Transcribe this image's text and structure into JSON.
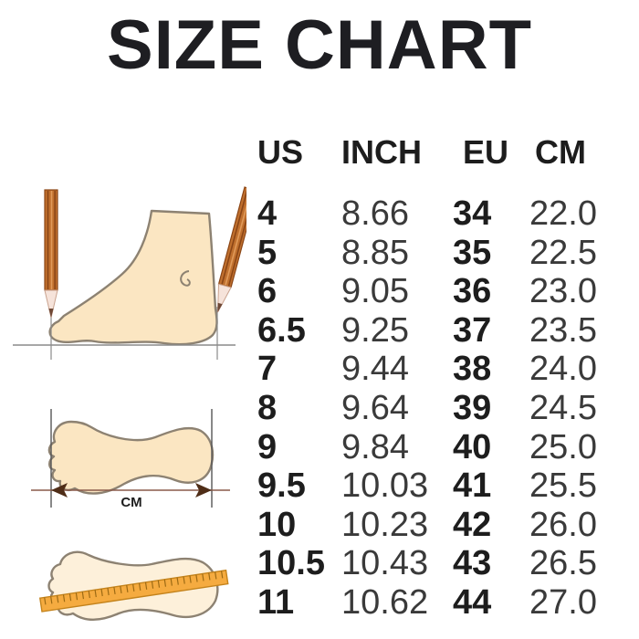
{
  "title": "SIZE CHART",
  "table": {
    "headers": [
      "US",
      "INCH",
      "EU",
      "CM"
    ],
    "rows": [
      [
        "4",
        "8.66",
        "34",
        "22.0"
      ],
      [
        "5",
        "8.85",
        "35",
        "22.5"
      ],
      [
        "6",
        "9.05",
        "36",
        "23.0"
      ],
      [
        "6.5",
        "9.25",
        "37",
        "23.5"
      ],
      [
        "7",
        "9.44",
        "38",
        "24.0"
      ],
      [
        "8",
        "9.64",
        "39",
        "24.5"
      ],
      [
        "9",
        "9.84",
        "40",
        "25.0"
      ],
      [
        "9.5",
        "10.03",
        "41",
        "25.5"
      ],
      [
        "10",
        "10.23",
        "42",
        "26.0"
      ],
      [
        "10.5",
        "10.43",
        "43",
        "26.5"
      ],
      [
        "11",
        "10.62",
        "44",
        "27.0"
      ]
    ]
  },
  "illustrations": {
    "cm_label": "CM",
    "icons": [
      "pencil-icon",
      "foot-side-icon",
      "footprint-icon",
      "ruler-icon",
      "measure-arrow-icon"
    ]
  },
  "colors": {
    "background": "#ffffff",
    "text_primary": "#1d1d1d",
    "text_secondary": "#3a3a3a",
    "foot_fill": "#fbe6c2",
    "foot_outline": "#8d8272",
    "pencil_body": "#c0702e",
    "pencil_stripe": "#8a4516",
    "arrowhead_brown": "#4f2d17",
    "ruler_orange": "#f5ab40",
    "ruler_edge": "#c4831c"
  },
  "chart_data": {
    "type": "table",
    "title": "SIZE CHART",
    "columns": [
      "US",
      "INCH",
      "EU",
      "CM"
    ],
    "rows": [
      [
        4,
        8.66,
        34,
        22.0
      ],
      [
        5,
        8.85,
        35,
        22.5
      ],
      [
        6,
        9.05,
        36,
        23.0
      ],
      [
        6.5,
        9.25,
        37,
        23.5
      ],
      [
        7,
        9.44,
        38,
        24.0
      ],
      [
        8,
        9.64,
        39,
        24.5
      ],
      [
        9,
        9.84,
        40,
        25.0
      ],
      [
        9.5,
        10.03,
        41,
        25.5
      ],
      [
        10,
        10.23,
        42,
        26.0
      ],
      [
        10.5,
        10.43,
        43,
        26.5
      ],
      [
        11,
        10.62,
        44,
        27.0
      ]
    ]
  }
}
